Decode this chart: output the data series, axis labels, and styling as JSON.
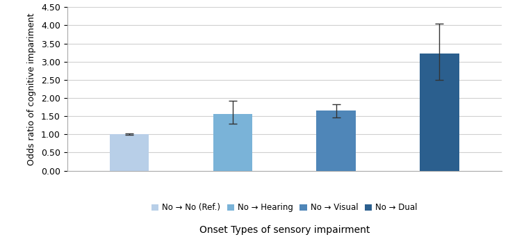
{
  "categories": [
    "No → No (Ref.)",
    "No → Hearing",
    "No → Visual",
    "No → Dual"
  ],
  "values": [
    1.0,
    1.56,
    1.65,
    3.22
  ],
  "error_low": [
    0.02,
    0.27,
    0.18,
    0.72
  ],
  "error_high": [
    0.02,
    0.37,
    0.18,
    0.82
  ],
  "bar_colors": [
    "#b8cfe8",
    "#7ab3d8",
    "#4f86b8",
    "#2b5f8e"
  ],
  "ylabel": "Odds ratio of cognitive impariment",
  "xlabel": "Onset Types of sensory impairment",
  "ylim": [
    0,
    4.5
  ],
  "yticks": [
    0.0,
    0.5,
    1.0,
    1.5,
    2.0,
    2.5,
    3.0,
    3.5,
    4.0,
    4.5
  ],
  "legend_labels": [
    "No → No (Ref.)",
    "No → Hearing",
    "No → Visual",
    "No → Dual"
  ],
  "legend_colors": [
    "#b8cfe8",
    "#7ab3d8",
    "#4f86b8",
    "#2b5f8e"
  ],
  "background_color": "#ffffff",
  "grid_color": "#d0d0d0"
}
